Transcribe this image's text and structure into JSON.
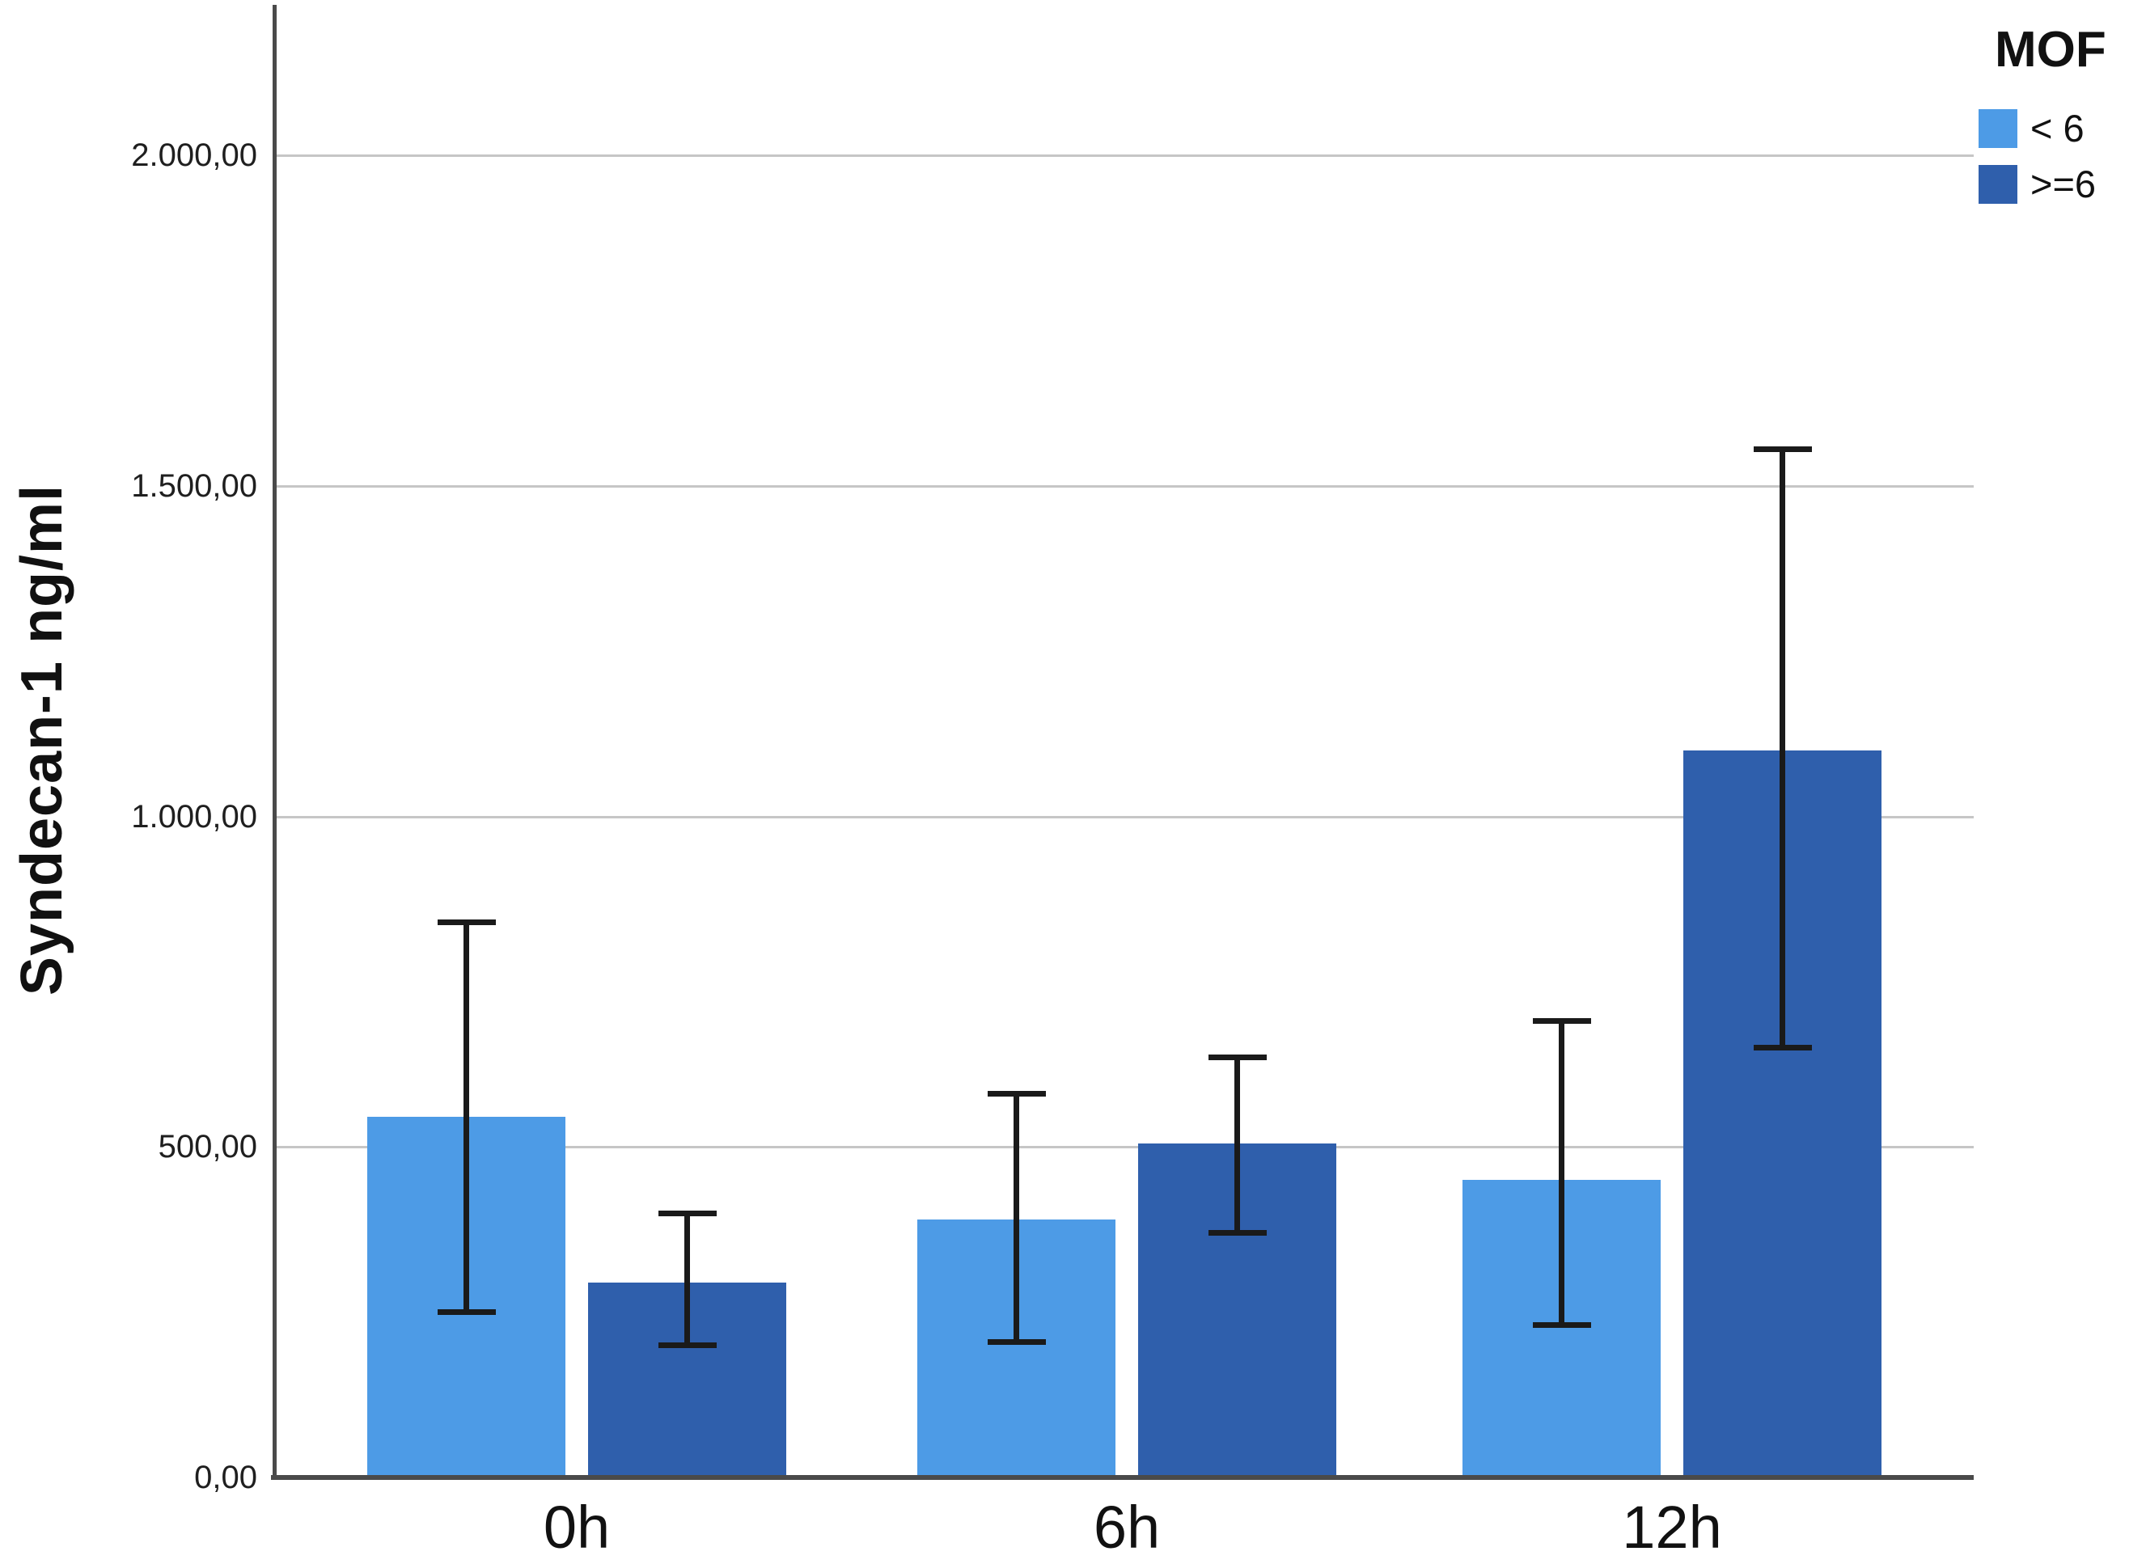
{
  "chart_data": {
    "type": "bar",
    "title": "",
    "ylabel": "Syndecan-1 ng/ml",
    "xlabel": "",
    "categories": [
      "0h",
      "6h",
      "12h"
    ],
    "legend": {
      "title": "MOF",
      "position": "top-right",
      "entries": [
        "< 6",
        ">=6"
      ]
    },
    "series": [
      {
        "key": "lt6",
        "name": "< 6",
        "color": "#4D9BE6",
        "values": [
          545,
          390,
          450
        ],
        "error_low": [
          250,
          205,
          230
        ],
        "error_high": [
          840,
          580,
          690
        ]
      },
      {
        "key": "gte6",
        "name": ">=6",
        "color": "#2F5FAC",
        "values": [
          295,
          505,
          1100
        ],
        "error_low": [
          200,
          370,
          650
        ],
        "error_high": [
          400,
          635,
          1555
        ]
      }
    ],
    "y_axis": {
      "min": 0,
      "max": 2235,
      "gridline_values": [
        500,
        1000,
        1500,
        2000
      ],
      "ticks": [
        {
          "value": 0,
          "label": "0,00"
        },
        {
          "value": 500,
          "label": "500,00"
        },
        {
          "value": 1000,
          "label": "1.000,00"
        },
        {
          "value": 1500,
          "label": "1.500,00"
        },
        {
          "value": 2000,
          "label": "2.000,00"
        }
      ]
    },
    "grid": "horizontal",
    "error_bars": true,
    "colors": {
      "grid": "#C6C6C6",
      "axis": "#4A4A4A",
      "text": "#1A1A1A",
      "error_bar": "#1A1A1A"
    }
  }
}
